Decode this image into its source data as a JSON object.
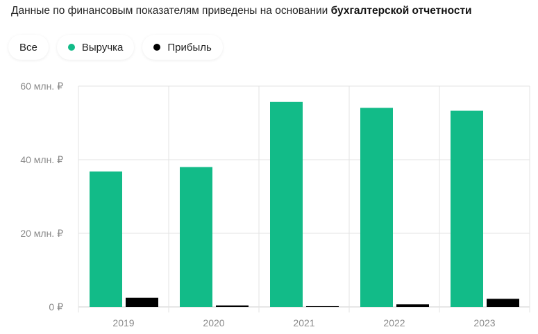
{
  "header": {
    "note_prefix": "Данные по финансовым показателям приведены на основании",
    "note_link": "бухгалтерской отчетности"
  },
  "filters": {
    "all_label": "Все",
    "revenue_label": "Выручка",
    "profit_label": "Прибыль"
  },
  "colors": {
    "revenue": "#12bb88",
    "profit": "#000000",
    "grid": "#e3e3e3",
    "axis_text": "#8a8a8a"
  },
  "chart_data": {
    "type": "bar",
    "categories": [
      "2019",
      "2020",
      "2021",
      "2022",
      "2023"
    ],
    "series": [
      {
        "name": "Выручка",
        "values": [
          36.8,
          38.0,
          55.7,
          54.1,
          53.3
        ]
      },
      {
        "name": "Прибыль",
        "values": [
          2.5,
          0.4,
          0.2,
          0.7,
          2.2
        ]
      }
    ],
    "yticks": [
      0,
      20,
      40,
      60
    ],
    "ytick_labels": [
      "0 ₽",
      "20 млн. ₽",
      "40 млн. ₽",
      "60 млн. ₽"
    ],
    "ylim": [
      0,
      60
    ],
    "xlabel": "",
    "ylabel": "",
    "grid": true,
    "legend": "top-left"
  }
}
